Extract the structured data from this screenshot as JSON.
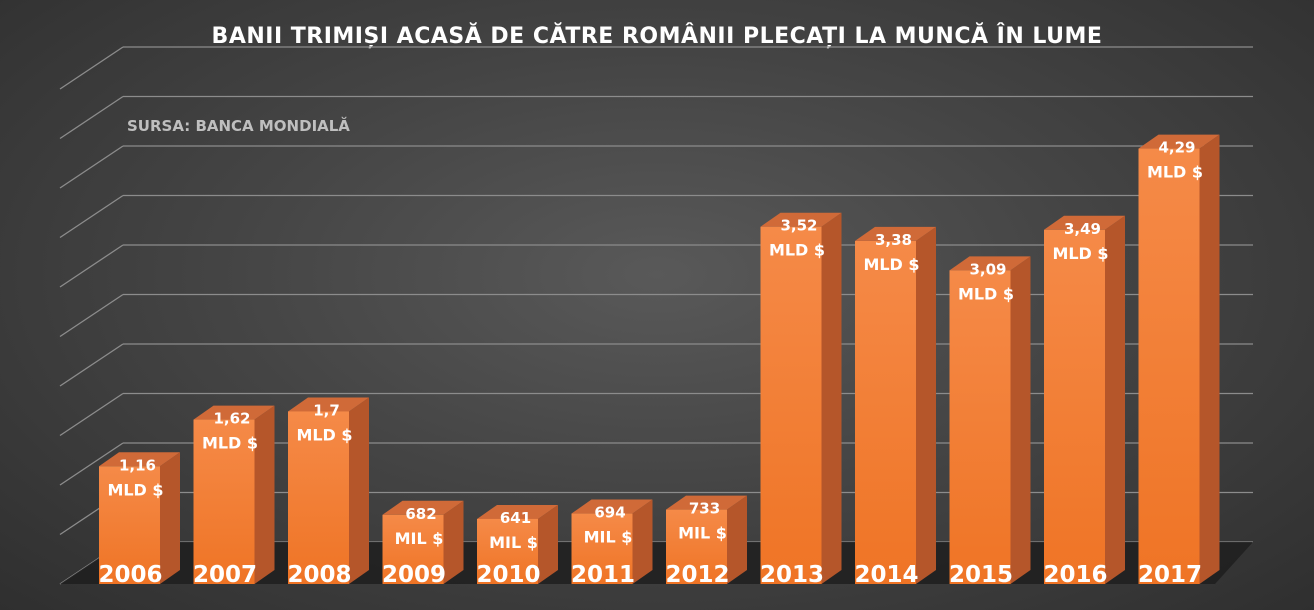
{
  "chart_data": {
    "type": "bar",
    "title": "BANII TRIMIȘI ACASĂ DE CĂTRE ROMÂNII PLECAȚI LA MUNCĂ ÎN LUME",
    "source_note": "SURSA: BANCA MONDIALĂ",
    "categories": [
      "2006",
      "2007",
      "2008",
      "2009",
      "2010",
      "2011",
      "2012",
      "2013",
      "2014",
      "2015",
      "2016",
      "2017"
    ],
    "values_billion_usd": [
      1.16,
      1.62,
      1.7,
      0.682,
      0.641,
      0.694,
      0.733,
      3.52,
      3.38,
      3.09,
      3.49,
      4.29
    ],
    "data_labels": [
      {
        "value": "1,16",
        "unit": "MLD $"
      },
      {
        "value": "1,62",
        "unit": "MLD $"
      },
      {
        "value": "1,7",
        "unit": "MLD $"
      },
      {
        "value": "682",
        "unit": "MIL $"
      },
      {
        "value": "641",
        "unit": "MIL $"
      },
      {
        "value": "694",
        "unit": "MIL $"
      },
      {
        "value": "733",
        "unit": "MIL $"
      },
      {
        "value": "3,52",
        "unit": "MLD $"
      },
      {
        "value": "3,38",
        "unit": "MLD $"
      },
      {
        "value": "3,09",
        "unit": "MLD $"
      },
      {
        "value": "3,49",
        "unit": "MLD $"
      },
      {
        "value": "4,29",
        "unit": "MLD $"
      }
    ],
    "ylim": [
      0,
      5
    ],
    "grid": true,
    "legend": "none",
    "style": "3d-column",
    "colors": {
      "bar_front_top": "#f58a48",
      "bar_front_bottom": "#ef7425",
      "bar_side": "#b5562a",
      "bar_top": "#d06a38",
      "gridline": "#8c8c8c",
      "text": "#ffffff",
      "source_text": "#bfbfbf"
    }
  }
}
